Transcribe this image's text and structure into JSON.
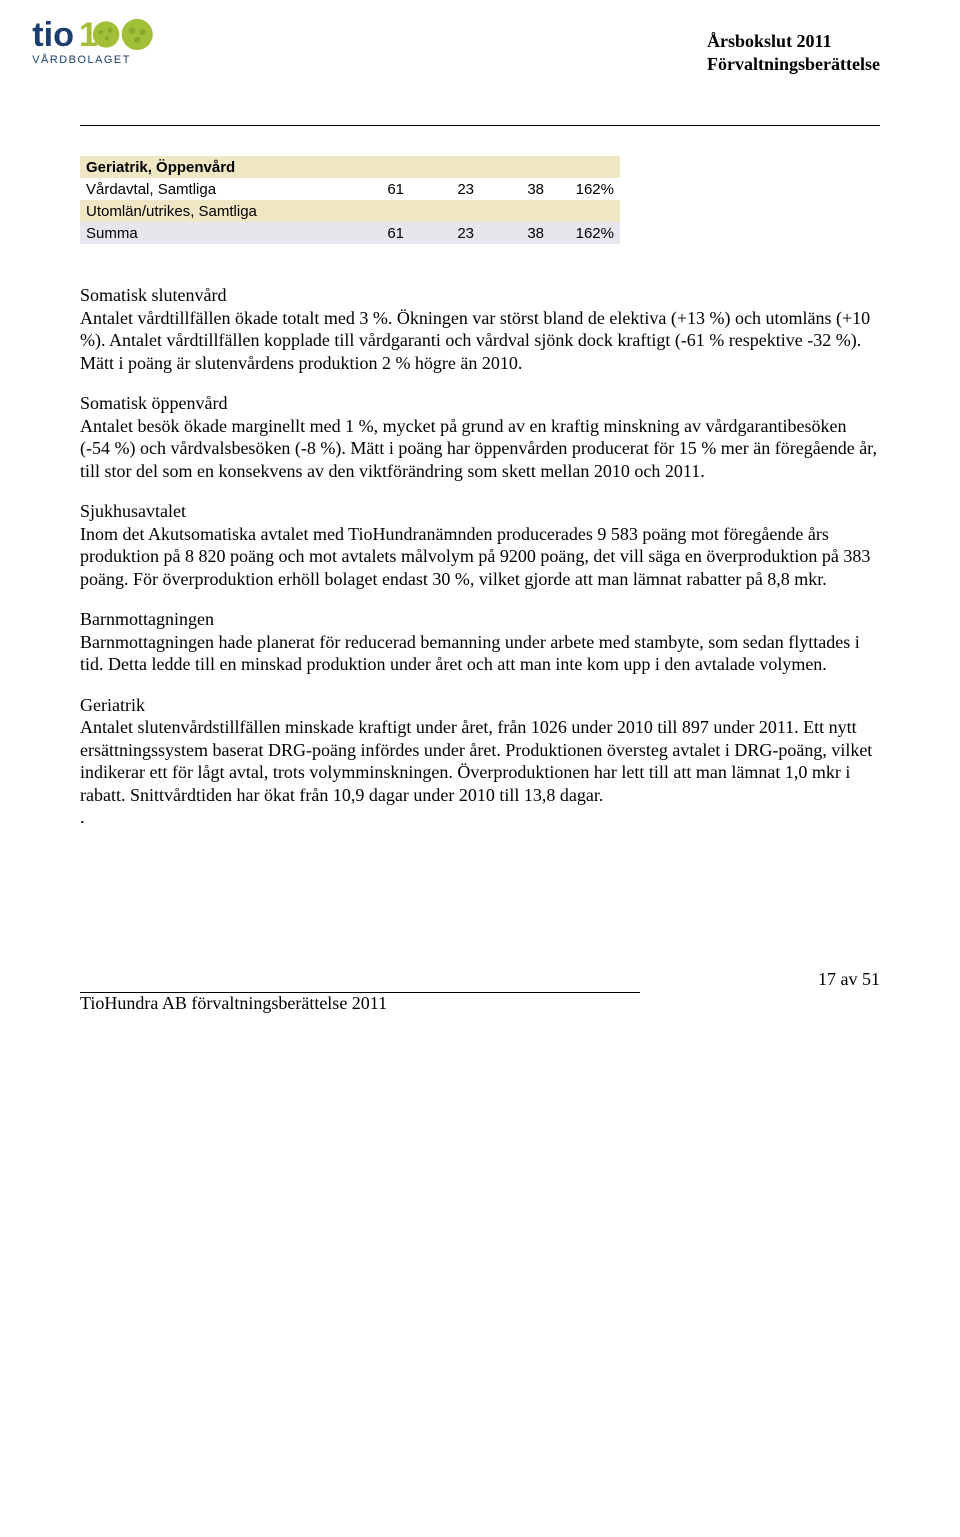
{
  "header": {
    "line1": "Årsbokslut 2011",
    "line2": "Förvaltningsberättelse"
  },
  "logo": {
    "brand_primary": "#1a3e6f",
    "brand_accent": "#a2c037",
    "text_line1": "tio",
    "text_line2": "VÅRDBOLAGET"
  },
  "table": {
    "rows": [
      {
        "style": "row-yellow",
        "label": "Geriatrik, Öppenvård",
        "label_class": "section-label",
        "c1": "",
        "c2": "",
        "c3": "",
        "c4": ""
      },
      {
        "style": "row-white",
        "label": "Vårdavtal, Samtliga",
        "label_class": "",
        "c1": "61",
        "c2": "23",
        "c3": "38",
        "c4": "162%"
      },
      {
        "style": "row-yellow",
        "label": "Utomlän/utrikes, Samtliga",
        "label_class": "",
        "c1": "",
        "c2": "",
        "c3": "",
        "c4": ""
      },
      {
        "style": "row-lavender",
        "label": "Summa",
        "label_class": "",
        "c1": "61",
        "c2": "23",
        "c3": "38",
        "c4": "162%"
      }
    ]
  },
  "paragraphs": [
    {
      "heading": "Somatisk slutenvård",
      "text": "Antalet vårdtillfällen ökade totalt med 3 %. Ökningen var störst bland de elektiva (+13 %) och utomläns (+10 %). Antalet vårdtillfällen kopplade till vårdgaranti och vårdval sjönk dock kraftigt (-61 % respektive -32 %). Mätt i poäng är slutenvårdens produktion 2 % högre än 2010."
    },
    {
      "heading": "Somatisk öppenvård",
      "text": "Antalet besök ökade marginellt med 1 %, mycket på grund av en kraftig minskning av vårdgarantibesöken (-54 %) och vårdvalsbesöken (-8 %). Mätt i poäng har öppenvården producerat för 15 % mer än föregående år, till stor del som en konsekvens av den viktförändring som skett mellan 2010 och 2011."
    },
    {
      "heading": "Sjukhusavtalet",
      "text": "Inom det Akutsomatiska avtalet med TioHundranämnden producerades 9 583 poäng mot föregående års produktion på 8 820 poäng och mot avtalets målvolym på 9200 poäng, det vill säga en överproduktion på 383 poäng. För överproduktion erhöll bolaget endast 30 %, vilket gjorde att man lämnat rabatter på 8,8 mkr."
    },
    {
      "heading": "Barnmottagningen",
      "text": "Barnmottagningen hade planerat för reducerad bemanning under arbete med stambyte, som sedan flyttades i tid. Detta ledde till en minskad produktion under året och att man inte kom upp i den avtalade volymen."
    },
    {
      "heading": "Geriatrik",
      "text": "Antalet slutenvårdstillfällen minskade kraftigt under året, från 1026 under 2010 till 897 under 2011. Ett nytt ersättningssystem baserat DRG-poäng infördes under året. Produktionen översteg avtalet i DRG-poäng, vilket indikerar ett för lågt avtal, trots volymminskningen. Överproduktionen har lett till att man lämnat 1,0 mkr i rabatt. Snittvårdtiden har ökat från 10,9 dagar under 2010 till 13,8 dagar."
    }
  ],
  "trailing_dot": ".",
  "footer": {
    "pagenum": "17 av 51",
    "text": "TioHundra AB förvaltningsberättelse 2011"
  }
}
